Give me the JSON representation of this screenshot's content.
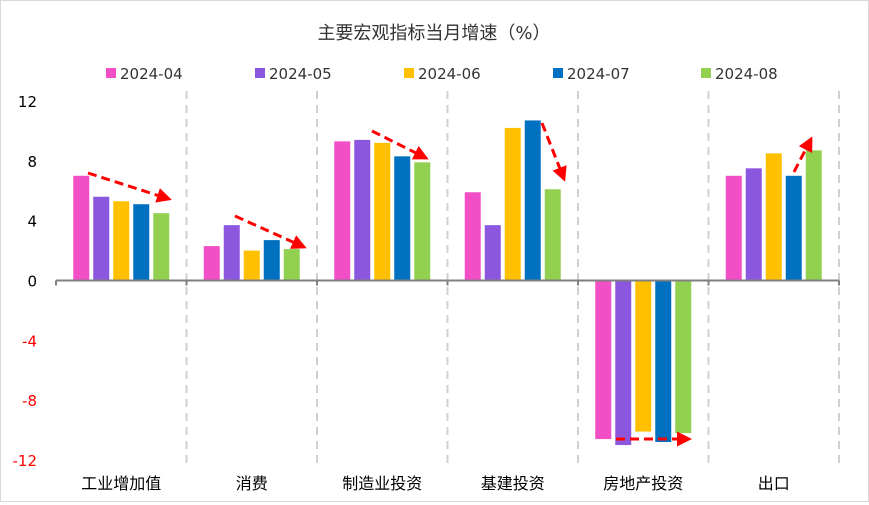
{
  "chart_data": {
    "type": "bar",
    "title": "主要宏观指标当月增速（%）",
    "categories": [
      "工业增加值",
      "消费",
      "制造业投资",
      "基建投资",
      "房地产投资",
      "出口"
    ],
    "series": [
      {
        "name": "2024-04",
        "color": "#f24fc6",
        "values": [
          7.0,
          2.3,
          9.3,
          5.9,
          -10.6,
          7.0
        ]
      },
      {
        "name": "2024-05",
        "color": "#8b57de",
        "values": [
          5.6,
          3.7,
          9.4,
          3.7,
          -11.0,
          7.5
        ]
      },
      {
        "name": "2024-06",
        "color": "#ffc000",
        "values": [
          5.3,
          2.0,
          9.2,
          10.2,
          -10.1,
          8.5
        ]
      },
      {
        "name": "2024-07",
        "color": "#0070c0",
        "values": [
          5.1,
          2.7,
          8.3,
          10.7,
          -10.8,
          7.0
        ]
      },
      {
        "name": "2024-08",
        "color": "#92d050",
        "values": [
          4.5,
          2.1,
          7.9,
          6.1,
          -10.2,
          8.7
        ]
      }
    ],
    "ylim": [
      -12,
      12
    ],
    "yticks": [
      12,
      8,
      4,
      0,
      -4,
      -8,
      -12
    ],
    "negative_tick_color": "#ff0000",
    "legend_position": "top",
    "grid": false,
    "category_separators": "dashed",
    "annotations": "red dashed trend arrows from 2024-04/2024-07 to 2024-08 in each category",
    "arrow_color": "#ff0000"
  }
}
